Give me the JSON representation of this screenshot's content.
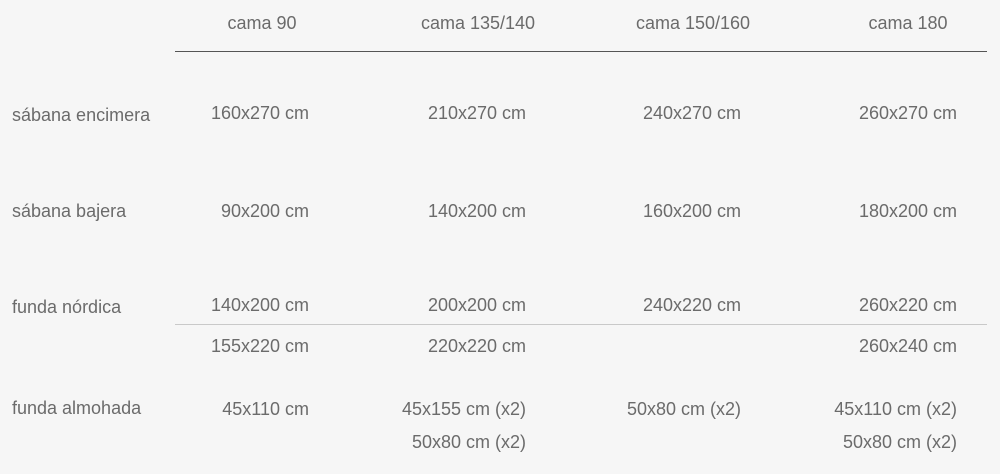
{
  "headers": [
    "cama 90",
    "cama 135/140",
    "cama 150/160",
    "cama 180"
  ],
  "rows": [
    {
      "label": "sábana encimera",
      "cells": [
        "160x270 cm",
        "210x270 cm",
        "240x270 cm",
        "260x270 cm"
      ]
    },
    {
      "label": "sábana bajera",
      "cells": [
        "90x200 cm",
        "140x200 cm",
        "160x200 cm",
        "180x200 cm"
      ]
    },
    {
      "label": "funda nórdica",
      "cells": [
        "140x200 cm",
        "200x200 cm",
        "240x220 cm",
        "260x220 cm"
      ],
      "cells_alt": [
        "155x220 cm",
        "220x220 cm",
        "",
        "260x240 cm"
      ]
    },
    {
      "label": "funda almohada",
      "cells": [
        "45x110 cm",
        "45x155 cm (x2)",
        "50x80 cm (x2)",
        "45x110 cm (x2)"
      ],
      "cells_alt": [
        "",
        "50x80 cm (x2)",
        "",
        "50x80 cm (x2)"
      ]
    }
  ]
}
